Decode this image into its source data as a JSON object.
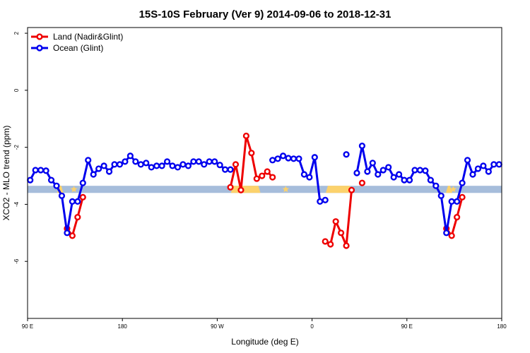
{
  "chart_data": {
    "type": "line",
    "title": "15S-10S February (Ver 9)   2014-09-06 to 2018-12-31",
    "xlabel": "Longitude (deg E)",
    "ylabel": "XCO2 - MLO trend (ppm)",
    "xlim": [
      90,
      540
    ],
    "ylim": [
      -8,
      2.2
    ],
    "x_ticks": [
      {
        "value": 90,
        "label": "90 E"
      },
      {
        "value": 180,
        "label": "180"
      },
      {
        "value": 270,
        "label": "90 W"
      },
      {
        "value": 360,
        "label": "0"
      },
      {
        "value": 450,
        "label": "90 E"
      },
      {
        "value": 540,
        "label": "180"
      }
    ],
    "y_ticks": [
      {
        "value": 2,
        "label": "2"
      },
      {
        "value": 0,
        "label": "0"
      },
      {
        "value": -2,
        "label": "-2"
      },
      {
        "value": -4,
        "label": "-4"
      },
      {
        "value": -6,
        "label": "-6"
      }
    ],
    "legend": {
      "position": "top-left",
      "entries": [
        {
          "name": "Land (Nadir&Glint)",
          "color": "#ee0000"
        },
        {
          "name": "Ocean (Glint)",
          "color": "#0000ee"
        }
      ]
    },
    "band": {
      "y_range": [
        -3.6,
        -3.35
      ],
      "base_color": "#a6bddb",
      "land_color": "#fcd26c",
      "land_ranges": [
        [
          118,
          124
        ],
        [
          283,
          311
        ],
        [
          373,
          398
        ],
        [
          487,
          493
        ]
      ],
      "star_x": [
        134,
        335,
        494
      ]
    },
    "series": [
      {
        "name": "Land (Nadir&Glint)",
        "color": "#ee0000",
        "segments": [
          [
            [
              127.5,
              -4.85
            ],
            [
              132.5,
              -5.1
            ],
            [
              137.5,
              -4.45
            ],
            [
              142.5,
              -3.75
            ]
          ],
          [
            [
              282.5,
              -3.4
            ],
            [
              287.5,
              -2.6
            ],
            [
              292.5,
              -3.5
            ],
            [
              297.5,
              -1.6
            ],
            [
              302.5,
              -2.2
            ],
            [
              307.5,
              -3.1
            ],
            [
              312.5,
              -3.0
            ],
            [
              317.5,
              -2.85
            ],
            [
              322.5,
              -3.05
            ]
          ],
          [
            [
              372.5,
              -5.3
            ],
            [
              377.5,
              -5.4
            ],
            [
              382.5,
              -4.6
            ],
            [
              387.5,
              -5.0
            ],
            [
              392.5,
              -5.45
            ],
            [
              397.5,
              -3.5
            ]
          ],
          [
            [
              407.5,
              -3.25
            ]
          ],
          [
            [
              487.5,
              -4.85
            ],
            [
              492.5,
              -5.1
            ],
            [
              497.5,
              -4.45
            ],
            [
              502.5,
              -3.75
            ]
          ]
        ]
      },
      {
        "name": "Ocean (Glint)",
        "color": "#0000ee",
        "segments": [
          [
            [
              92.5,
              -3.15
            ],
            [
              97.5,
              -2.8
            ],
            [
              102.5,
              -2.8
            ],
            [
              107.5,
              -2.82
            ],
            [
              112.5,
              -3.15
            ],
            [
              117.5,
              -3.35
            ],
            [
              122.5,
              -3.7
            ],
            [
              127.5,
              -5.0
            ],
            [
              132.5,
              -3.9
            ],
            [
              137.5,
              -3.9
            ],
            [
              142.5,
              -3.25
            ],
            [
              147.5,
              -2.45
            ],
            [
              152.5,
              -2.95
            ],
            [
              157.5,
              -2.75
            ],
            [
              162.5,
              -2.65
            ],
            [
              167.5,
              -2.85
            ],
            [
              172.5,
              -2.6
            ],
            [
              177.5,
              -2.6
            ],
            [
              182.5,
              -2.5
            ],
            [
              187.5,
              -2.3
            ],
            [
              192.5,
              -2.5
            ],
            [
              197.5,
              -2.6
            ],
            [
              202.5,
              -2.55
            ],
            [
              207.5,
              -2.7
            ],
            [
              212.5,
              -2.65
            ],
            [
              217.5,
              -2.65
            ],
            [
              222.5,
              -2.5
            ],
            [
              227.5,
              -2.65
            ],
            [
              232.5,
              -2.7
            ],
            [
              237.5,
              -2.6
            ],
            [
              242.5,
              -2.65
            ],
            [
              247.5,
              -2.5
            ],
            [
              252.5,
              -2.5
            ],
            [
              257.5,
              -2.6
            ],
            [
              262.5,
              -2.5
            ],
            [
              267.5,
              -2.5
            ],
            [
              272.5,
              -2.62
            ],
            [
              277.5,
              -2.78
            ],
            [
              282.5,
              -2.78
            ]
          ],
          [
            [
              322.5,
              -2.45
            ],
            [
              327.5,
              -2.4
            ],
            [
              332.5,
              -2.3
            ],
            [
              337.5,
              -2.38
            ],
            [
              342.5,
              -2.4
            ],
            [
              347.5,
              -2.4
            ],
            [
              352.5,
              -2.95
            ],
            [
              357.5,
              -3.05
            ],
            [
              362.5,
              -2.35
            ],
            [
              367.5,
              -3.9
            ],
            [
              372.5,
              -3.85
            ]
          ],
          [
            [
              392.5,
              -2.25
            ]
          ],
          [
            [
              402.5,
              -2.9
            ],
            [
              407.5,
              -1.95
            ],
            [
              412.5,
              -2.85
            ],
            [
              417.5,
              -2.55
            ],
            [
              422.5,
              -2.95
            ],
            [
              427.5,
              -2.8
            ],
            [
              432.5,
              -2.7
            ],
            [
              437.5,
              -3.05
            ],
            [
              442.5,
              -2.95
            ],
            [
              447.5,
              -3.15
            ],
            [
              452.5,
              -3.15
            ],
            [
              457.5,
              -2.8
            ],
            [
              462.5,
              -2.8
            ],
            [
              467.5,
              -2.82
            ],
            [
              472.5,
              -3.15
            ],
            [
              477.5,
              -3.35
            ],
            [
              482.5,
              -3.7
            ],
            [
              487.5,
              -5.0
            ],
            [
              492.5,
              -3.9
            ],
            [
              497.5,
              -3.9
            ],
            [
              502.5,
              -3.25
            ],
            [
              507.5,
              -2.45
            ],
            [
              512.5,
              -2.95
            ],
            [
              517.5,
              -2.75
            ],
            [
              522.5,
              -2.65
            ],
            [
              527.5,
              -2.85
            ],
            [
              532.5,
              -2.6
            ],
            [
              537.5,
              -2.6
            ]
          ]
        ]
      }
    ]
  }
}
